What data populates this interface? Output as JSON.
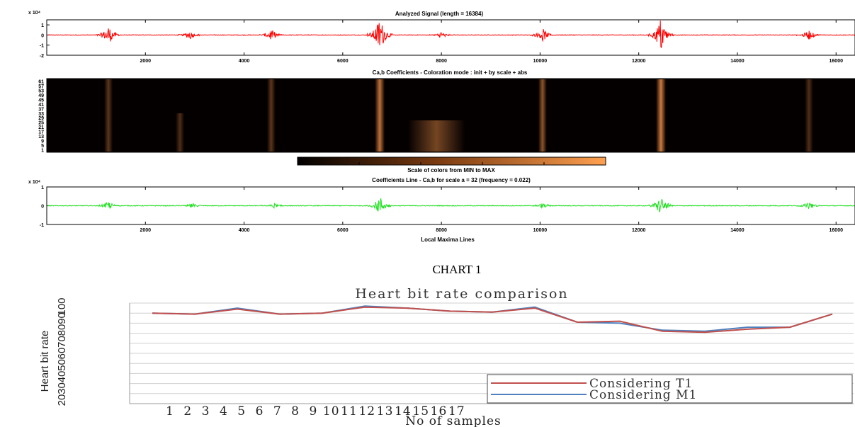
{
  "chart_data": [
    {
      "type": "line",
      "title": "Analyzed Signal (length = 16384)",
      "exponent_label": "x 10⁴",
      "y_ticks": [
        "1",
        "0",
        "-1",
        "-2"
      ],
      "x_ticks": [
        "2000",
        "4000",
        "6000",
        "8000",
        "10000",
        "12000",
        "14000",
        "16000"
      ],
      "xlim": [
        0,
        16384
      ],
      "ylim": [
        -2,
        1.5
      ],
      "color": "#ff0000",
      "events": [
        {
          "x": 1250,
          "amplitude": 1.0
        },
        {
          "x": 2900,
          "amplitude": 0.45
        },
        {
          "x": 4550,
          "amplitude": 0.6
        },
        {
          "x": 6750,
          "amplitude": 1.9
        },
        {
          "x": 8000,
          "amplitude": 0.35
        },
        {
          "x": 10050,
          "amplitude": 0.7
        },
        {
          "x": 12450,
          "amplitude": 1.8
        },
        {
          "x": 15450,
          "amplitude": 0.5
        }
      ]
    },
    {
      "type": "heatmap",
      "title": "Ca,b Coefficients - Coloration mode : init + by scale + abs",
      "y_ticks": [
        "61",
        "57",
        "53",
        "49",
        "45",
        "41",
        "37",
        "33",
        "29",
        "25",
        "21",
        "17",
        "13",
        "9",
        "5",
        "1"
      ],
      "colorbar_label": "Scale of colors from MIN to MAX",
      "color_min": "#000000",
      "color_max": "#ff9a4d",
      "bands": [
        {
          "x": 1250,
          "intensity": 0.35
        },
        {
          "x": 2700,
          "intensity": 0.3
        },
        {
          "x": 4550,
          "intensity": 0.35
        },
        {
          "x": 6750,
          "intensity": 0.75
        },
        {
          "x": 7900,
          "intensity": 0.45
        },
        {
          "x": 10050,
          "intensity": 0.55
        },
        {
          "x": 12450,
          "intensity": 0.8
        },
        {
          "x": 15450,
          "intensity": 0.3
        }
      ]
    },
    {
      "type": "line",
      "title": "Coefficients Line - Ca,b for scale a = 32 (frequency = 0.022)",
      "exponent_label": "x 10⁴",
      "y_ticks": [
        "1",
        "0",
        "-1"
      ],
      "x_ticks": [
        "2000",
        "4000",
        "6000",
        "8000",
        "10000",
        "12000",
        "14000",
        "16000"
      ],
      "xlabel": "Local Maxima Lines",
      "xlim": [
        0,
        16384
      ],
      "ylim": [
        -1,
        1
      ],
      "color": "#22e022",
      "events": [
        {
          "x": 1250,
          "amplitude": 0.25
        },
        {
          "x": 2950,
          "amplitude": 0.15
        },
        {
          "x": 4600,
          "amplitude": 0.15
        },
        {
          "x": 6750,
          "amplitude": 0.55
        },
        {
          "x": 10050,
          "amplitude": 0.15
        },
        {
          "x": 12450,
          "amplitude": 0.55
        },
        {
          "x": 15450,
          "amplitude": 0.2
        }
      ]
    },
    {
      "type": "line",
      "caption": "CHART 1",
      "title": "Heart bit rate comparison",
      "xlabel": "No of samples",
      "ylabel": "Heart bit rate",
      "y_ticks": [
        "20",
        "30",
        "40",
        "50",
        "60",
        "70",
        "80",
        "90",
        "100"
      ],
      "ylim": [
        0,
        100
      ],
      "categories": [
        "1",
        "2",
        "3",
        "4",
        "5",
        "6",
        "7",
        "8",
        "9",
        "10",
        "11",
        "12",
        "13",
        "14",
        "15",
        "16",
        "17"
      ],
      "legend_position": "bottom-right",
      "series": [
        {
          "name": "Considering T1",
          "color": "#c0504d",
          "values": [
            90,
            89,
            94,
            89,
            90,
            96,
            95,
            92,
            91,
            95,
            81,
            82,
            72,
            71,
            74,
            76,
            89
          ]
        },
        {
          "name": "Considering M1",
          "color": "#4f81bd",
          "values": [
            90,
            89,
            95,
            89,
            90,
            97,
            95,
            92,
            91,
            96,
            81,
            80,
            73,
            72,
            76,
            76,
            89
          ]
        }
      ]
    }
  ]
}
